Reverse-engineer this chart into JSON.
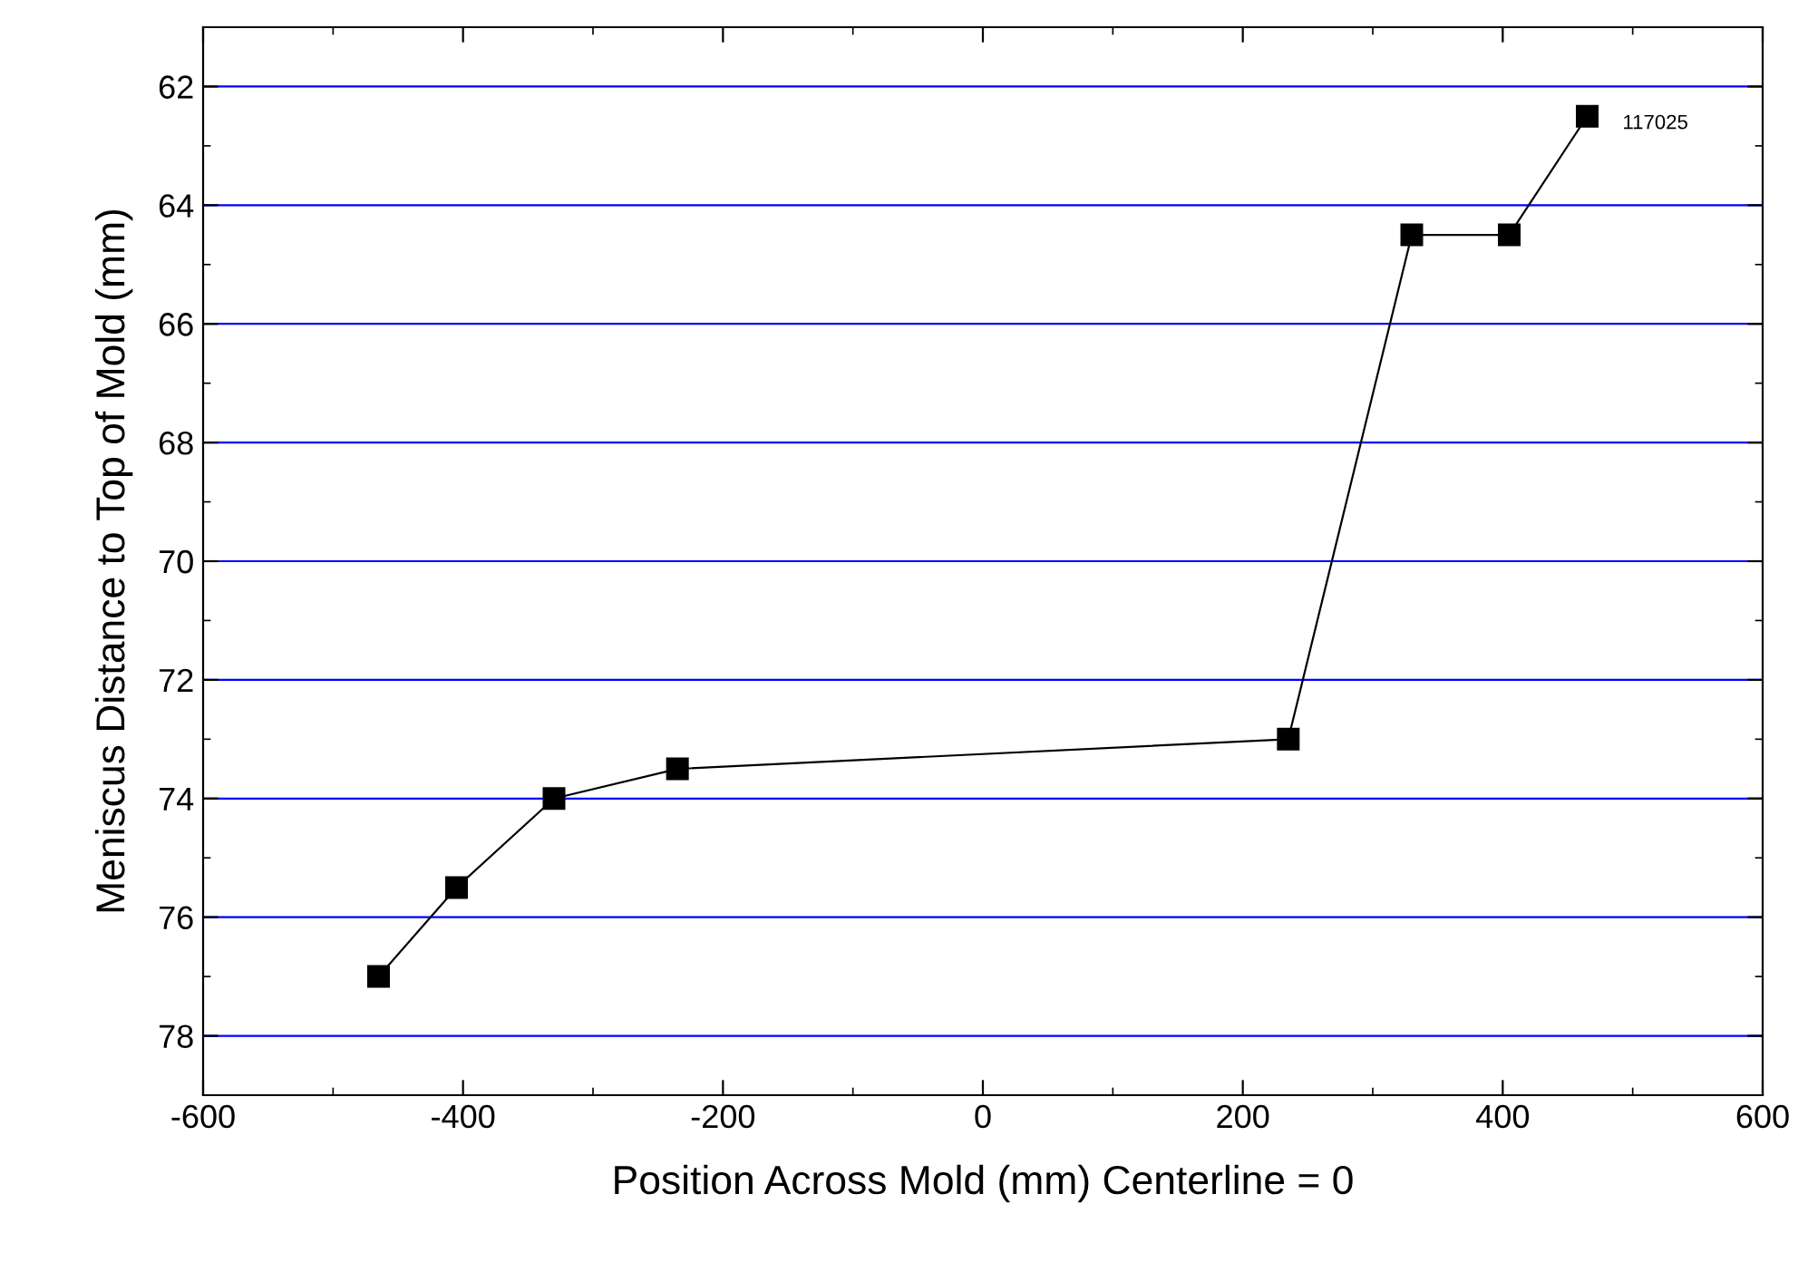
{
  "chart_data": {
    "type": "line",
    "xlabel": "Position Across Mold (mm) Centerline = 0",
    "ylabel": "Meniscus Distance to Top of Mold (mm)",
    "series": [
      {
        "name": "117025",
        "color": "#000000",
        "x": [
          -465,
          -405,
          -330,
          -235,
          235,
          330,
          405,
          465
        ],
        "values": [
          77,
          75.5,
          74,
          73.5,
          73,
          64.5,
          64.5,
          62.5
        ]
      }
    ],
    "xlim": [
      -600,
      600
    ],
    "xticks": [
      -600,
      -400,
      -200,
      0,
      200,
      400,
      600
    ],
    "ylim": [
      79,
      61
    ],
    "yticks": [
      62,
      64,
      66,
      68,
      70,
      72,
      74,
      76,
      78
    ],
    "grid": "y",
    "marker": "square",
    "line_style": "solid"
  }
}
